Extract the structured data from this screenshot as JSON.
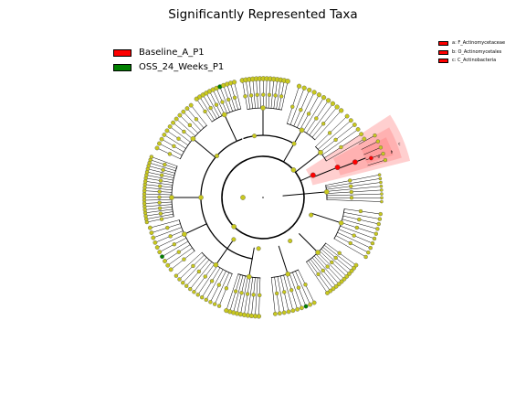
{
  "title": "Significantly Represented Taxa",
  "colors": {
    "baseline": "#ff0000",
    "oss": "#008000",
    "neutral_node": "#c8c81e",
    "branch": "#000000",
    "highlight_fill": "#ff8080"
  },
  "class_legend": [
    {
      "label": "Baseline_A_P1",
      "color": "#ff0000"
    },
    {
      "label": "OSS_24_Weeks_P1",
      "color": "#008000"
    }
  ],
  "clade_legend": [
    {
      "label": "a: F_Actinomycetaceae",
      "color": "#ff0000"
    },
    {
      "label": "b: O_Actinomycetales",
      "color": "#ff0000"
    },
    {
      "label": "c: C_Actinobacteria",
      "color": "#ff0000"
    }
  ],
  "sector_letters": [
    "c",
    "b",
    "a"
  ]
}
